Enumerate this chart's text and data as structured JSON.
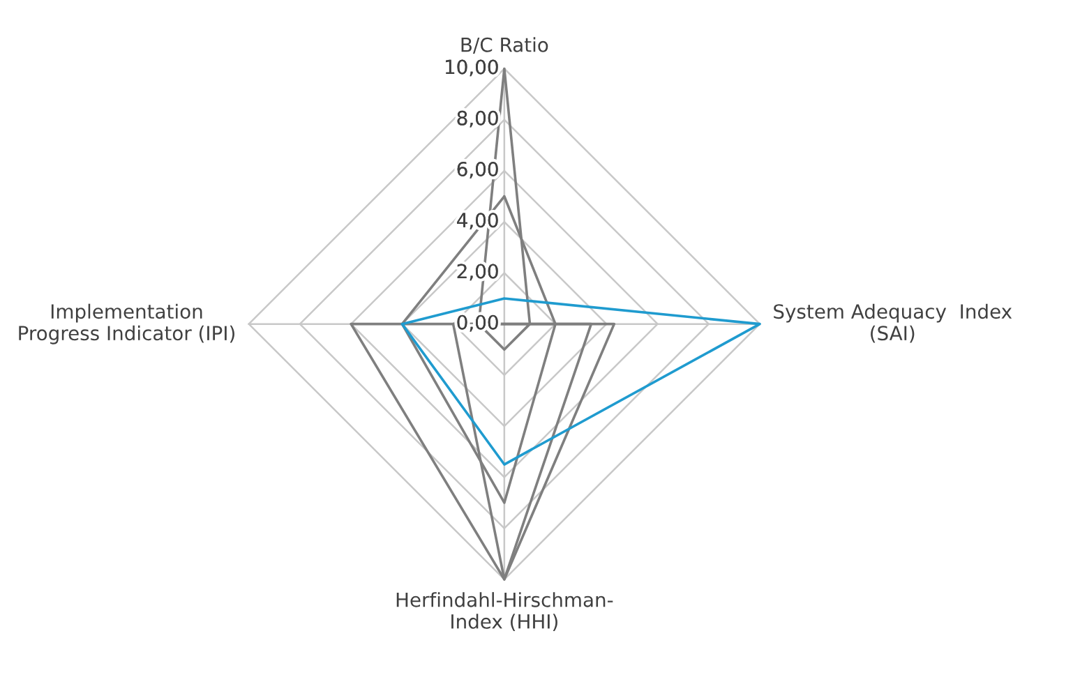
{
  "chart_data": {
    "type": "radar",
    "categories": [
      "B/C Ratio",
      "System Adequacy  Index\n(SAI)",
      "Herfindahl-Hirschman-\nIndex (HHI)",
      "Implementation\nProgress Indicator (IPI)"
    ],
    "ylim": [
      0,
      10
    ],
    "yticks": [
      {
        "value": 0,
        "label": "0,00"
      },
      {
        "value": 2,
        "label": "2,00"
      },
      {
        "value": 4,
        "label": "4,00"
      },
      {
        "value": 6,
        "label": "6,00"
      },
      {
        "value": 8,
        "label": "8,00"
      },
      {
        "value": 10,
        "label": "10,00"
      }
    ],
    "grid": true,
    "series": [
      {
        "color": "#7f7f7f",
        "values": [
          10,
          1,
          1,
          1
        ]
      },
      {
        "color": "#7f7f7f",
        "values": [
          5,
          2,
          7,
          4
        ]
      },
      {
        "color": "#7f7f7f",
        "values": [
          0,
          4.3,
          10,
          6
        ]
      },
      {
        "color": "#7f7f7f",
        "values": [
          0,
          3.4,
          10,
          2
        ]
      },
      {
        "color": "#1f9bcf",
        "values": [
          1,
          10,
          5.5,
          4
        ]
      }
    ]
  }
}
